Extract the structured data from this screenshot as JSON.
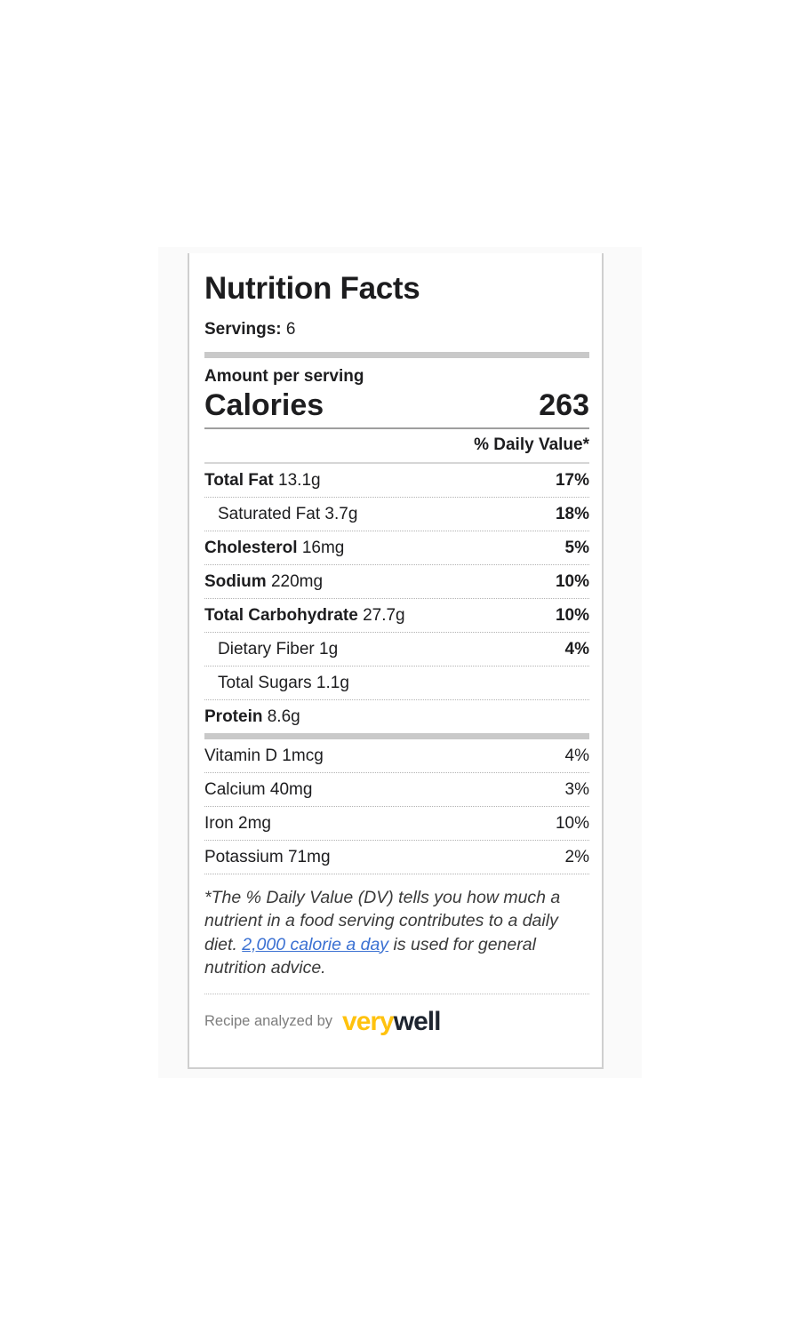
{
  "card": {
    "title": "Nutrition Facts",
    "servings_label": "Servings:",
    "servings_value": "6",
    "amount_per_serving_label": "Amount per serving",
    "calories_label": "Calories",
    "calories_value": "263",
    "daily_value_header": "% Daily Value*",
    "nutrients": [
      {
        "name": "Total Fat",
        "amount": "13.1g",
        "dv": "17%"
      },
      {
        "name": "Saturated Fat",
        "amount": "3.7g",
        "dv": "18%"
      },
      {
        "name": "Cholesterol",
        "amount": "16mg",
        "dv": "5%"
      },
      {
        "name": "Sodium",
        "amount": "220mg",
        "dv": "10%"
      },
      {
        "name": "Total Carbohydrate",
        "amount": "27.7g",
        "dv": "10%"
      },
      {
        "name": "Dietary Fiber",
        "amount": "1g",
        "dv": "4%"
      },
      {
        "name": "Total Sugars",
        "amount": "1.1g",
        "dv": ""
      },
      {
        "name": "Protein",
        "amount": "8.6g",
        "dv": ""
      }
    ],
    "micronutrients": [
      {
        "name": "Vitamin D",
        "amount": "1mcg",
        "dv": "4%"
      },
      {
        "name": "Calcium",
        "amount": "40mg",
        "dv": "3%"
      },
      {
        "name": "Iron",
        "amount": "2mg",
        "dv": "10%"
      },
      {
        "name": "Potassium",
        "amount": "71mg",
        "dv": "2%"
      }
    ],
    "footnote": {
      "text_before_link": "*The % Daily Value (DV) tells you how much a nutrient in a food serving contributes to a daily diet. ",
      "link_text": "2,000 calorie a day",
      "text_after_link": " is used for general nutrition advice."
    },
    "footer": {
      "attribution": "Recipe analyzed by",
      "brand_first": "very",
      "brand_second": "well"
    },
    "colors": {
      "brand_yellow": "#FFC20E",
      "brand_dark": "#1E2530",
      "link_blue": "#3A70D2",
      "bar_gray": "#C9C9C9"
    }
  }
}
